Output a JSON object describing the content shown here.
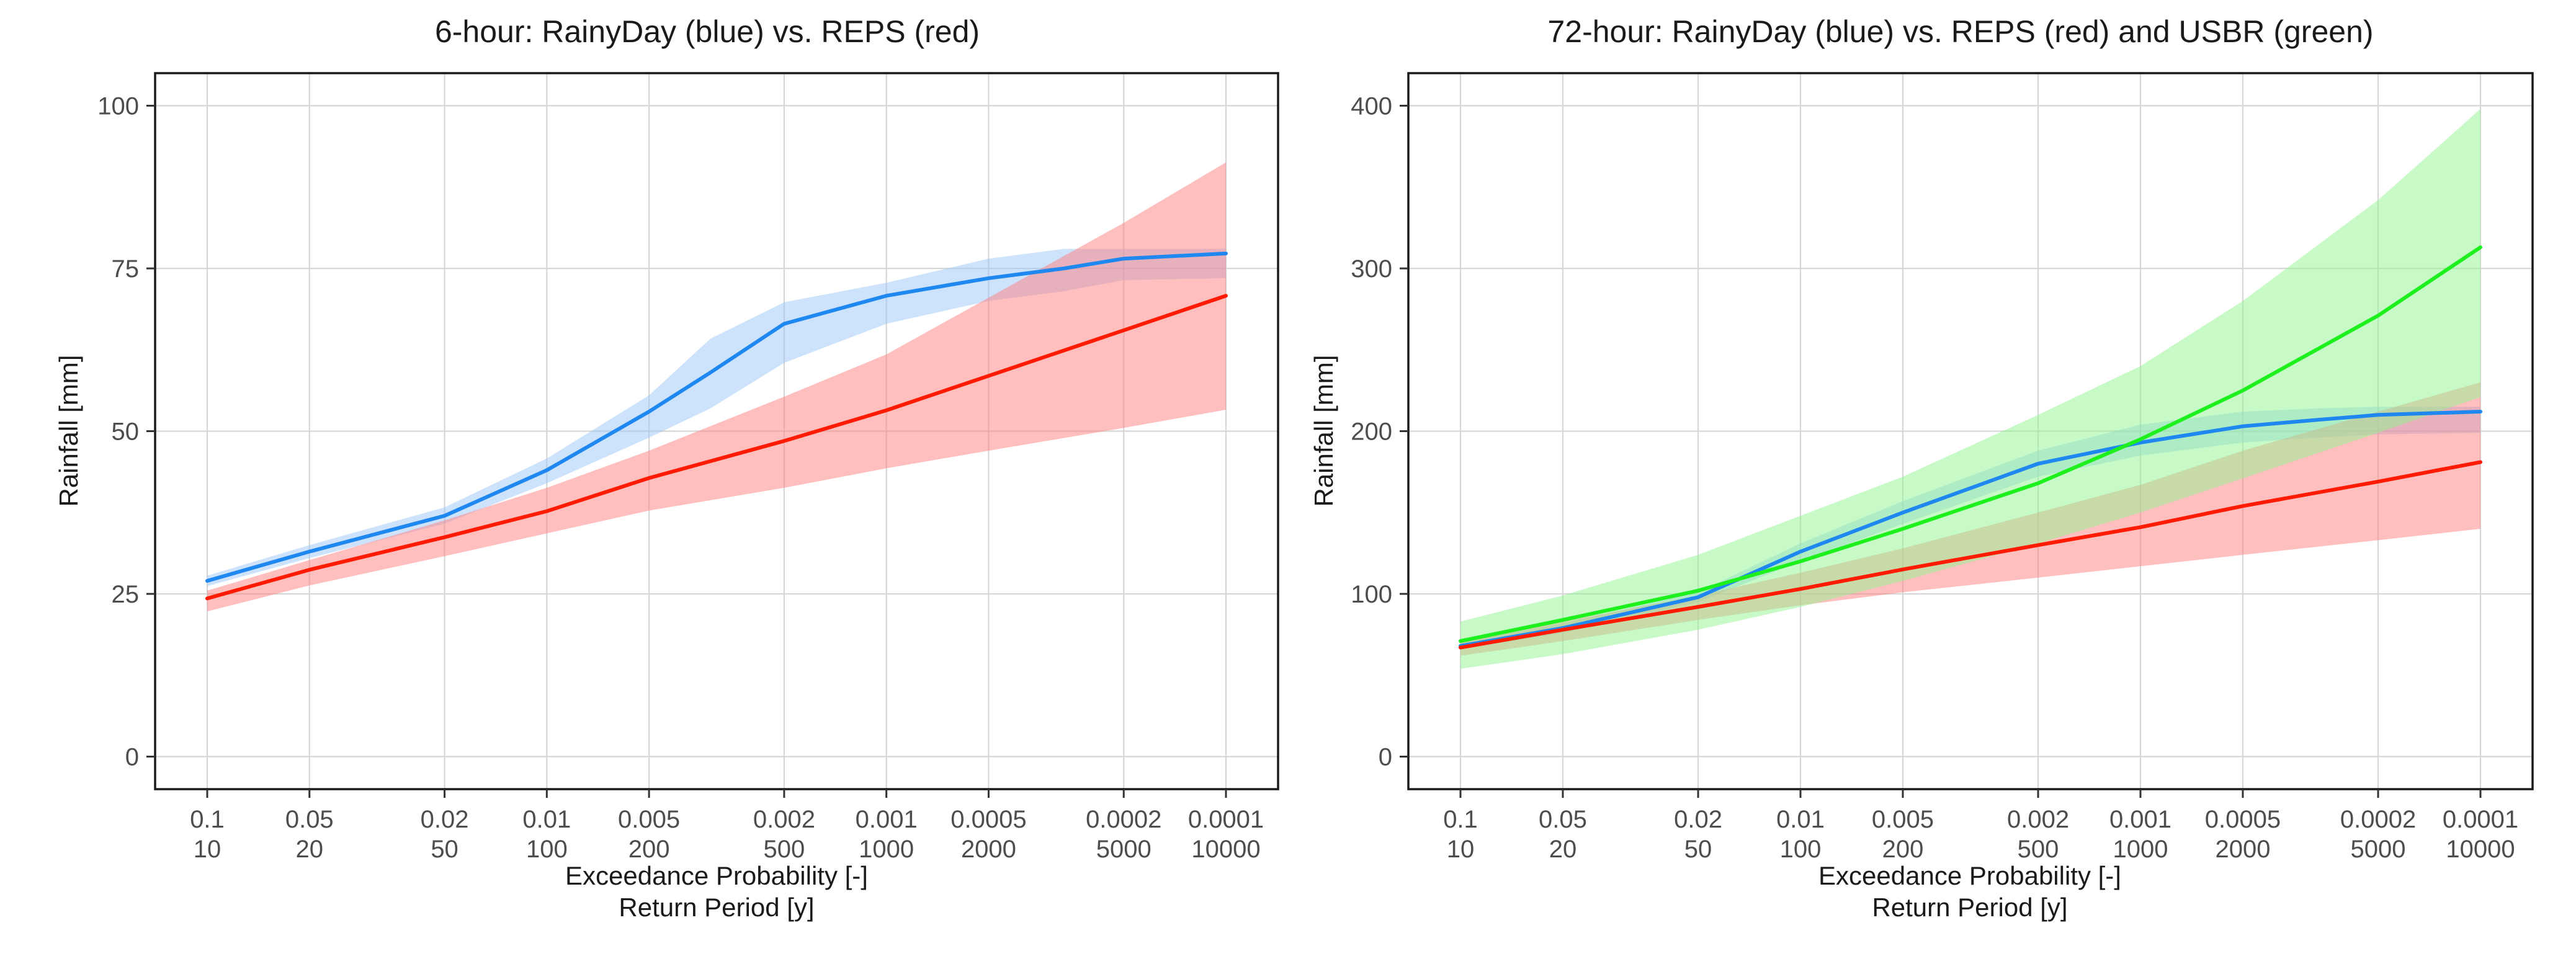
{
  "chart_data": [
    {
      "type": "line",
      "title": "6-hour: RainyDay (blue) vs. REPS (red)",
      "ylabel": "Rainfall [mm]",
      "xlabel": "Exceedance Probability [-]",
      "xlabel2": "Return Period [y]",
      "x_scale": "log",
      "x_reversed": true,
      "x": [
        0.1,
        0.05,
        0.02,
        0.01,
        0.005,
        0.002,
        0.001,
        0.0005,
        0.0002,
        0.0001
      ],
      "x_tick_labels": [
        "0.1",
        "0.05",
        "0.02",
        "0.01",
        "0.005",
        "0.002",
        "0.001",
        "0.0005",
        "0.0002",
        "0.0001"
      ],
      "x_tick_labels2": [
        "10",
        "20",
        "50",
        "100",
        "200",
        "500",
        "1000",
        "2000",
        "5000",
        "10000"
      ],
      "ylim": [
        -5,
        105
      ],
      "y_ticks": [
        0,
        25,
        50,
        75,
        100
      ],
      "grid": true,
      "series": [
        {
          "name": "RainyDay",
          "color": "#1f88f0",
          "band_color": "#9cc5f7",
          "points": [
            [
              0.1,
              27
            ],
            [
              0.05,
              31.5
            ],
            [
              0.02,
              37
            ],
            [
              0.01,
              44
            ],
            [
              0.005,
              53
            ],
            [
              0.0033,
              59
            ],
            [
              0.002,
              66.5
            ],
            [
              0.001,
              70.8
            ],
            [
              0.0005,
              73.5
            ],
            [
              0.0003,
              75
            ],
            [
              0.0002,
              76.5
            ],
            [
              0.0001,
              77.3
            ]
          ],
          "band_lower": [
            [
              0.1,
              26.2
            ],
            [
              0.05,
              30.5
            ],
            [
              0.02,
              35.8
            ],
            [
              0.01,
              42
            ],
            [
              0.005,
              49
            ],
            [
              0.0033,
              53.5
            ],
            [
              0.002,
              60.5
            ],
            [
              0.001,
              66.5
            ],
            [
              0.0005,
              70
            ],
            [
              0.0003,
              71.5
            ],
            [
              0.0002,
              73.2
            ],
            [
              0.0001,
              73.5
            ]
          ],
          "band_upper": [
            [
              0.1,
              27.8
            ],
            [
              0.05,
              32.5
            ],
            [
              0.02,
              38.3
            ],
            [
              0.01,
              45.8
            ],
            [
              0.005,
              55.5
            ],
            [
              0.0033,
              64.2
            ],
            [
              0.002,
              69.8
            ],
            [
              0.001,
              72.8
            ],
            [
              0.0005,
              76.5
            ],
            [
              0.0003,
              78
            ],
            [
              0.0002,
              78
            ],
            [
              0.0001,
              78
            ]
          ]
        },
        {
          "name": "REPS",
          "color": "#ff1a00",
          "band_color": "#ff8080",
          "points": [
            [
              0.1,
              24.3
            ],
            [
              0.05,
              28.7
            ],
            [
              0.02,
              33.7
            ],
            [
              0.01,
              37.7
            ],
            [
              0.005,
              42.8
            ],
            [
              0.002,
              48.5
            ],
            [
              0.001,
              53.2
            ],
            [
              0.0005,
              58.5
            ],
            [
              0.0002,
              65.5
            ],
            [
              0.0001,
              70.8
            ]
          ],
          "band_lower": [
            [
              0.1,
              22.3
            ],
            [
              0.05,
              26.3
            ],
            [
              0.02,
              30.8
            ],
            [
              0.01,
              34.3
            ],
            [
              0.005,
              37.8
            ],
            [
              0.002,
              41.3
            ],
            [
              0.001,
              44.3
            ],
            [
              0.0005,
              47
            ],
            [
              0.0002,
              50.5
            ],
            [
              0.0001,
              53.3
            ]
          ],
          "band_upper": [
            [
              0.1,
              25.5
            ],
            [
              0.05,
              30.2
            ],
            [
              0.02,
              36.3
            ],
            [
              0.01,
              41.3
            ],
            [
              0.005,
              47
            ],
            [
              0.002,
              55.3
            ],
            [
              0.001,
              61.8
            ],
            [
              0.0005,
              70.5
            ],
            [
              0.0002,
              82
            ],
            [
              0.0001,
              91.3
            ]
          ]
        }
      ]
    },
    {
      "type": "line",
      "title": "72-hour: RainyDay (blue) vs. REPS (red) and USBR (green)",
      "ylabel": "Rainfall [mm]",
      "xlabel": "Exceedance Probability [-]",
      "xlabel2": "Return Period [y]",
      "x_scale": "log",
      "x_reversed": true,
      "x": [
        0.1,
        0.05,
        0.02,
        0.01,
        0.005,
        0.002,
        0.001,
        0.0005,
        0.0002,
        0.0001
      ],
      "x_tick_labels": [
        "0.1",
        "0.05",
        "0.02",
        "0.01",
        "0.005",
        "0.002",
        "0.001",
        "0.0005",
        "0.0002",
        "0.0001"
      ],
      "x_tick_labels2": [
        "10",
        "20",
        "50",
        "100",
        "200",
        "500",
        "1000",
        "2000",
        "5000",
        "10000"
      ],
      "ylim": [
        -20,
        420
      ],
      "y_ticks": [
        0,
        100,
        200,
        300,
        400
      ],
      "grid": true,
      "series": [
        {
          "name": "RainyDay",
          "color": "#1f88f0",
          "band_color": "#9cc5f7",
          "points": [
            [
              0.1,
              68
            ],
            [
              0.05,
              79
            ],
            [
              0.02,
              98
            ],
            [
              0.01,
              126
            ],
            [
              0.005,
              150
            ],
            [
              0.002,
              180
            ],
            [
              0.001,
              193
            ],
            [
              0.0005,
              203
            ],
            [
              0.0003,
              207
            ],
            [
              0.0002,
              210
            ],
            [
              0.0001,
              212
            ]
          ],
          "band_lower": [
            [
              0.1,
              66
            ],
            [
              0.05,
              76
            ],
            [
              0.02,
              95
            ],
            [
              0.01,
              120
            ],
            [
              0.005,
              143
            ],
            [
              0.002,
              172
            ],
            [
              0.001,
              185
            ],
            [
              0.0005,
              193
            ],
            [
              0.0003,
              196
            ],
            [
              0.0002,
              198
            ],
            [
              0.0001,
              199
            ]
          ],
          "band_upper": [
            [
              0.1,
              70
            ],
            [
              0.05,
              82
            ],
            [
              0.02,
              101
            ],
            [
              0.01,
              131
            ],
            [
              0.005,
              157
            ],
            [
              0.002,
              188
            ],
            [
              0.001,
              204
            ],
            [
              0.0005,
              212
            ],
            [
              0.0003,
              214
            ],
            [
              0.0002,
              215
            ],
            [
              0.0001,
              215
            ]
          ]
        },
        {
          "name": "REPS",
          "color": "#ff1a00",
          "band_color": "#ff8080",
          "points": [
            [
              0.1,
              67
            ],
            [
              0.05,
              78
            ],
            [
              0.02,
              92
            ],
            [
              0.01,
              103
            ],
            [
              0.005,
              115
            ],
            [
              0.002,
              130
            ],
            [
              0.001,
              141
            ],
            [
              0.0005,
              154
            ],
            [
              0.0002,
              169
            ],
            [
              0.0001,
              181
            ]
          ],
          "band_lower": [
            [
              0.1,
              62
            ],
            [
              0.05,
              71
            ],
            [
              0.02,
              84
            ],
            [
              0.01,
              93
            ],
            [
              0.005,
              101
            ],
            [
              0.002,
              110
            ],
            [
              0.001,
              117
            ],
            [
              0.0005,
              124
            ],
            [
              0.0002,
              133
            ],
            [
              0.0001,
              140
            ]
          ],
          "band_upper": [
            [
              0.1,
              71
            ],
            [
              0.05,
              83
            ],
            [
              0.02,
              99
            ],
            [
              0.01,
              113
            ],
            [
              0.005,
              128
            ],
            [
              0.002,
              150
            ],
            [
              0.001,
              167
            ],
            [
              0.0005,
              188
            ],
            [
              0.0002,
              212
            ],
            [
              0.0001,
              230
            ]
          ]
        },
        {
          "name": "USBR",
          "color": "#1ef01e",
          "band_color": "#90f590",
          "points": [
            [
              0.1,
              71
            ],
            [
              0.05,
              84
            ],
            [
              0.02,
              102
            ],
            [
              0.01,
              120
            ],
            [
              0.005,
              140
            ],
            [
              0.002,
              168
            ],
            [
              0.001,
              195
            ],
            [
              0.0005,
              225
            ],
            [
              0.0002,
              271
            ],
            [
              0.0001,
              313
            ]
          ],
          "band_lower": [
            [
              0.1,
              54
            ],
            [
              0.05,
              63
            ],
            [
              0.02,
              78
            ],
            [
              0.01,
              92
            ],
            [
              0.005,
              108
            ],
            [
              0.002,
              131
            ],
            [
              0.001,
              150
            ],
            [
              0.0005,
              171
            ],
            [
              0.0002,
              199
            ],
            [
              0.0001,
              221
            ]
          ],
          "band_upper": [
            [
              0.1,
              83
            ],
            [
              0.05,
              99
            ],
            [
              0.02,
              124
            ],
            [
              0.01,
              148
            ],
            [
              0.005,
              172
            ],
            [
              0.002,
              210
            ],
            [
              0.001,
              240
            ],
            [
              0.0005,
              280
            ],
            [
              0.0002,
              342
            ],
            [
              0.0001,
              398
            ]
          ]
        }
      ]
    }
  ]
}
